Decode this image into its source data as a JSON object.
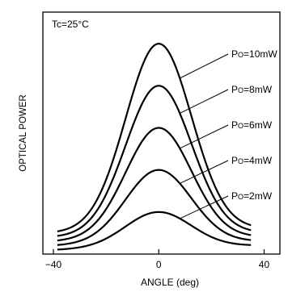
{
  "chart_data": {
    "type": "line",
    "title": "",
    "xlabel": "ANGLE (deg)",
    "ylabel": "OPTICAL POWER",
    "xlim": [
      -44,
      46
    ],
    "ylim": [
      0,
      11.5
    ],
    "xticks": [
      -40,
      0,
      40
    ],
    "grid": false,
    "annotation": "Tc=25°C",
    "label_prefix": "P",
    "label_subscript": "O",
    "series": [
      {
        "name": "=10mW",
        "peak": 10.0,
        "base_left": 1.0,
        "base_right": 1.2,
        "sigma": 12.5
      },
      {
        "name": "=8mW",
        "peak": 8.0,
        "base_left": 0.8,
        "base_right": 1.0,
        "sigma": 12.5
      },
      {
        "name": "=6mW",
        "peak": 6.0,
        "base_left": 0.6,
        "base_right": 0.8,
        "sigma": 12.5
      },
      {
        "name": "=4mW",
        "peak": 4.0,
        "base_left": 0.4,
        "base_right": 0.6,
        "sigma": 12.5
      },
      {
        "name": "=2mW",
        "peak": 2.0,
        "base_left": 0.2,
        "base_right": 0.4,
        "sigma": 12.5
      }
    ]
  }
}
